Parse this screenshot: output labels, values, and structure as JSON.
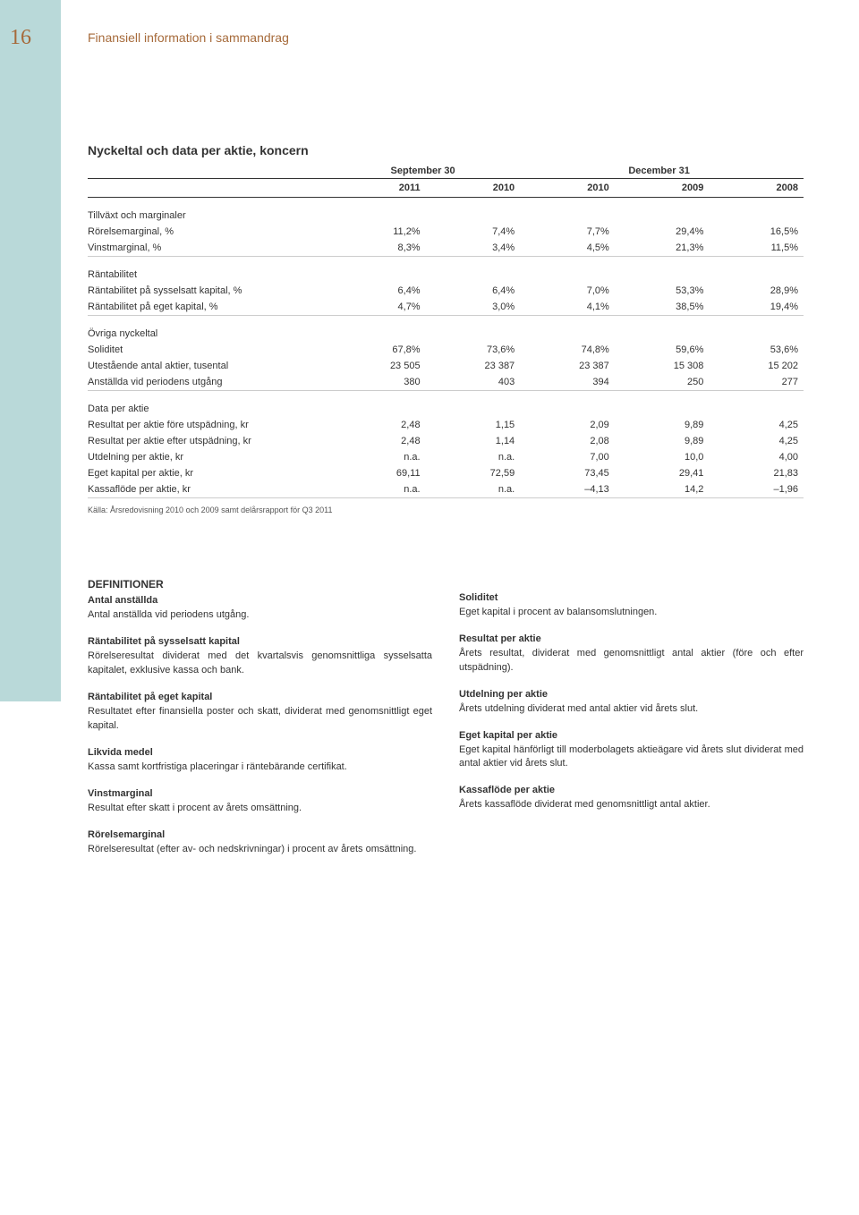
{
  "page_number": "16",
  "header_title": "Finansiell information i sammandrag",
  "table": {
    "title": "Nyckeltal och data per aktie, koncern",
    "super_headers": {
      "sept": "September 30",
      "dec": "December 31"
    },
    "years": [
      "2011",
      "2010",
      "2010",
      "2009",
      "2008"
    ],
    "sections": [
      {
        "label": "Tillväxt och marginaler",
        "rows": [
          {
            "label": "Rörelsemarginal, %",
            "vals": [
              "11,2%",
              "7,4%",
              "7,7%",
              "29,4%",
              "16,5%"
            ]
          },
          {
            "label": "Vinstmarginal, %",
            "vals": [
              "8,3%",
              "3,4%",
              "4,5%",
              "21,3%",
              "11,5%"
            ]
          }
        ]
      },
      {
        "label": "Räntabilitet",
        "rows": [
          {
            "label": "Räntabilitet på sysselsatt kapital, %",
            "vals": [
              "6,4%",
              "6,4%",
              "7,0%",
              "53,3%",
              "28,9%"
            ]
          },
          {
            "label": "Räntabilitet på eget kapital, %",
            "vals": [
              "4,7%",
              "3,0%",
              "4,1%",
              "38,5%",
              "19,4%"
            ]
          }
        ]
      },
      {
        "label": "Övriga nyckeltal",
        "rows": [
          {
            "label": "Soliditet",
            "vals": [
              "67,8%",
              "73,6%",
              "74,8%",
              "59,6%",
              "53,6%"
            ]
          },
          {
            "label": "Utestående antal aktier, tusental",
            "vals": [
              "23 505",
              "23 387",
              "23 387",
              "15 308",
              "15 202"
            ]
          },
          {
            "label": "Anställda vid periodens utgång",
            "vals": [
              "380",
              "403",
              "394",
              "250",
              "277"
            ]
          }
        ]
      },
      {
        "label": "Data per aktie",
        "rows": [
          {
            "label": "Resultat per aktie före utspädning, kr",
            "vals": [
              "2,48",
              "1,15",
              "2,09",
              "9,89",
              "4,25"
            ]
          },
          {
            "label": "Resultat per aktie efter utspädning, kr",
            "vals": [
              "2,48",
              "1,14",
              "2,08",
              "9,89",
              "4,25"
            ]
          },
          {
            "label": "Utdelning per aktie, kr",
            "vals": [
              "n.a.",
              "n.a.",
              "7,00",
              "10,0",
              "4,00"
            ]
          },
          {
            "label": "Eget kapital per aktie, kr",
            "vals": [
              "69,11",
              "72,59",
              "73,45",
              "29,41",
              "21,83"
            ]
          },
          {
            "label": "Kassaflöde per aktie, kr",
            "vals": [
              "n.a.",
              "n.a.",
              "–4,13",
              "14,2",
              "–1,96"
            ]
          }
        ]
      }
    ],
    "source": "Källa: Årsredovisning 2010 och 2009 samt delårsrapport för Q3 2011"
  },
  "definitions": {
    "heading": "DEFINITIONER",
    "left": [
      {
        "term": "Antal anställda",
        "body": "Antal anställda vid periodens utgång."
      },
      {
        "term": "Räntabilitet på sysselsatt kapital",
        "body": "Rörelseresultat dividerat med det kvartalsvis genomsnittliga sysselsatta kapitalet, exklusive kassa och bank."
      },
      {
        "term": "Räntabilitet på eget kapital",
        "body": "Resultatet efter finansiella poster och skatt, dividerat med genomsnittligt eget kapital."
      },
      {
        "term": "Likvida medel",
        "body": "Kassa samt kortfristiga placeringar i räntebärande certifikat."
      },
      {
        "term": "Vinstmarginal",
        "body": "Resultat efter skatt i procent av årets omsättning."
      },
      {
        "term": "Rörelsemarginal",
        "body": "Rörelseresultat (efter av- och nedskrivningar) i procent av årets omsättning."
      }
    ],
    "right": [
      {
        "term": "Soliditet",
        "body": "Eget kapital i procent av balansomslutningen."
      },
      {
        "term": "Resultat per aktie",
        "body": "Årets resultat, dividerat med genomsnittligt antal aktier (före och efter utspädning)."
      },
      {
        "term": "Utdelning per aktie",
        "body": "Årets utdelning dividerat med antal aktier vid årets slut."
      },
      {
        "term": "Eget kapital per aktie",
        "body": "Eget kapital hänförligt till moderbolagets aktieägare vid årets slut dividerat med antal aktier vid årets slut."
      },
      {
        "term": "Kassaflöde per aktie",
        "body": "Årets kassaflöde dividerat med genomsnittligt antal aktier."
      }
    ]
  },
  "colors": {
    "sidebar": "#b9d9d9",
    "accent": "#a66a3a",
    "text": "#333333"
  }
}
